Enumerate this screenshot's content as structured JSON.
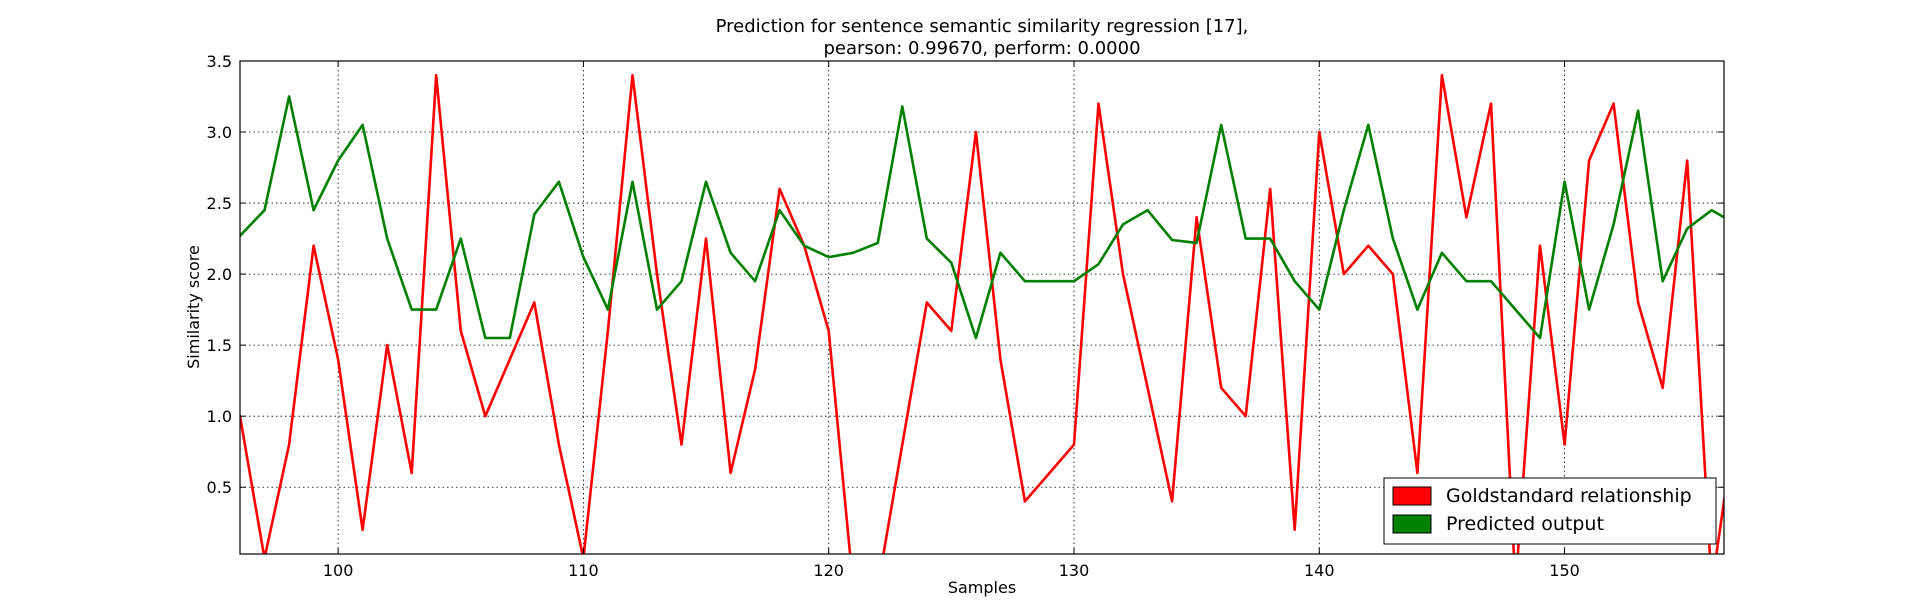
{
  "chart_data": {
    "type": "line",
    "title": "Prediction for sentence semantic similarity regression [17],",
    "subtitle": "pearson: 0.99670, perform: 0.0000",
    "xlabel": "Samples",
    "ylabel": "Similarity score",
    "xlim": [
      96,
      156.5
    ],
    "ylim": [
      0.03,
      3.5
    ],
    "xticks": [
      100,
      110,
      120,
      130,
      140,
      150
    ],
    "xtick_labels": [
      "100",
      "110",
      "120",
      "130",
      "140",
      "150"
    ],
    "yticks": [
      0.5,
      1.0,
      1.5,
      2.0,
      2.5,
      3.0,
      3.5
    ],
    "ytick_labels": [
      "0.5",
      "1.0",
      "1.5",
      "2.0",
      "2.5",
      "3.0",
      "3.5"
    ],
    "grid": true,
    "legend_position": "bottom-right",
    "x": [
      96,
      97,
      98,
      99,
      100,
      101,
      102,
      103,
      104,
      105,
      106,
      107,
      108,
      109,
      110,
      111,
      112,
      113,
      114,
      115,
      116,
      117,
      118,
      119,
      120,
      121,
      122,
      123,
      124,
      125,
      126,
      127,
      128,
      129,
      130,
      131,
      132,
      133,
      134,
      135,
      136,
      137,
      138,
      139,
      140,
      141,
      142,
      143,
      144,
      145,
      146,
      147,
      148,
      149,
      150,
      151,
      152,
      153,
      154,
      155,
      156,
      157
    ],
    "series": [
      {
        "name": "Goldstandard relationship",
        "color": "#ff0000",
        "values": [
          1.0,
          0.0,
          0.8,
          2.2,
          1.4,
          0.2,
          1.5,
          0.6,
          3.4,
          1.6,
          1.0,
          1.4,
          1.8,
          0.8,
          0.0,
          1.6,
          3.4,
          2.0,
          0.8,
          2.25,
          0.6,
          1.33,
          2.6,
          2.2,
          1.6,
          -0.2,
          -0.2,
          0.8,
          1.8,
          1.6,
          3.0,
          1.4,
          0.4,
          0.6,
          0.8,
          3.2,
          2.0,
          1.2,
          0.4,
          2.4,
          1.2,
          1.0,
          2.6,
          0.2,
          3.0,
          2.0,
          2.2,
          2.0,
          0.6,
          3.4,
          2.4,
          3.2,
          -0.2,
          2.2,
          0.8,
          2.8,
          3.2,
          1.8,
          1.2,
          2.8,
          -0.2,
          1.0
        ]
      },
      {
        "name": "Predicted output",
        "color": "#008000",
        "values": [
          2.27,
          2.45,
          3.25,
          2.45,
          2.8,
          3.05,
          2.25,
          1.75,
          1.75,
          2.25,
          1.55,
          1.55,
          2.42,
          2.65,
          2.12,
          1.75,
          2.65,
          1.75,
          1.95,
          2.65,
          2.15,
          1.95,
          2.45,
          2.2,
          2.12,
          2.15,
          2.22,
          3.18,
          2.25,
          2.08,
          1.55,
          2.15,
          1.95,
          1.95,
          1.95,
          2.07,
          2.35,
          2.45,
          2.24,
          2.22,
          3.05,
          2.25,
          2.25,
          1.95,
          1.75,
          2.45,
          3.05,
          2.25,
          1.75,
          2.15,
          1.95,
          1.95,
          1.75,
          1.55,
          2.65,
          1.75,
          2.35,
          3.15,
          1.95,
          2.32,
          2.45,
          2.35
        ]
      }
    ]
  }
}
